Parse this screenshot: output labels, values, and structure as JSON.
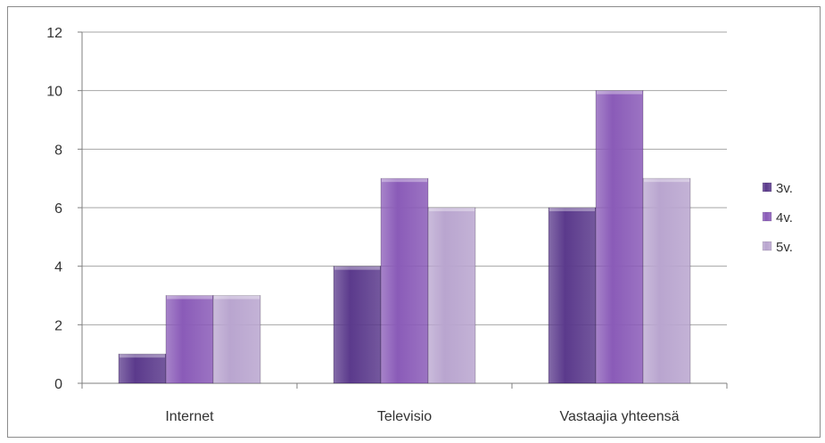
{
  "chart_data": {
    "type": "bar",
    "title": "",
    "xlabel": "",
    "ylabel": "",
    "categories": [
      "Internet",
      "Televisio",
      "Vastaajia yhteensä"
    ],
    "series": [
      {
        "name": "3v.",
        "values": [
          1,
          4,
          6
        ],
        "color": "#5b3a8c"
      },
      {
        "name": "4v.",
        "values": [
          3,
          7,
          10
        ],
        "color": "#8a5bb8"
      },
      {
        "name": "5v.",
        "values": [
          3,
          6,
          7
        ],
        "color": "#b9a5cf"
      }
    ],
    "ylim": [
      0,
      12
    ],
    "yticks": [
      0,
      2,
      4,
      6,
      8,
      10,
      12
    ],
    "grid": true,
    "legend": "right"
  }
}
